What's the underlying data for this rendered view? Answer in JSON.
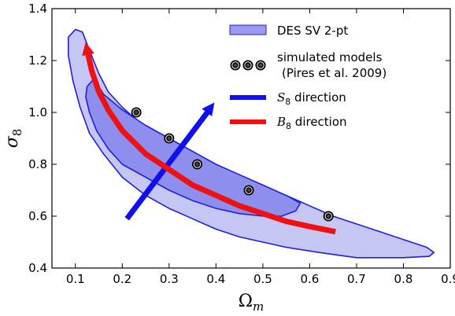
{
  "chart_data": {
    "type": "scatter",
    "xlabel": "Ω",
    "xlabel_sub": "m",
    "ylabel": "σ",
    "ylabel_sub": "8",
    "xlim": [
      0.05,
      0.9
    ],
    "ylim": [
      0.4,
      1.4
    ],
    "xticks": [
      "0.1",
      "0.2",
      "0.3",
      "0.4",
      "0.5",
      "0.6",
      "0.7",
      "0.8",
      "0.9"
    ],
    "yticks": [
      "0.4",
      "0.6",
      "0.8",
      "1.0",
      "1.2",
      "1.4"
    ],
    "grid": false,
    "legend_position": "top-right",
    "legend": [
      {
        "label": "DES SV 2-pt",
        "kind": "region"
      },
      {
        "label": "simulated models",
        "label2": "(Pires et al. 2009)",
        "kind": "markers"
      },
      {
        "label_var": "S",
        "label_sub": "8",
        "label_rest": " direction",
        "kind": "arrow-blue"
      },
      {
        "label_var": "B",
        "label_sub": "8",
        "label_rest": " direction",
        "kind": "arrow-red"
      }
    ],
    "simulated_models": {
      "x": [
        0.23,
        0.3,
        0.36,
        0.47,
        0.64
      ],
      "y": [
        1.0,
        0.9,
        0.8,
        0.7,
        0.6
      ]
    },
    "contour_outer": [
      [
        0.085,
        1.29
      ],
      [
        0.1,
        1.32
      ],
      [
        0.115,
        1.31
      ],
      [
        0.13,
        1.24
      ],
      [
        0.15,
        1.15
      ],
      [
        0.17,
        1.08
      ],
      [
        0.2,
        1.02
      ],
      [
        0.25,
        0.94
      ],
      [
        0.3,
        0.88
      ],
      [
        0.35,
        0.83
      ],
      [
        0.4,
        0.79
      ],
      [
        0.45,
        0.75
      ],
      [
        0.5,
        0.71
      ],
      [
        0.55,
        0.68
      ],
      [
        0.6,
        0.64
      ],
      [
        0.65,
        0.6
      ],
      [
        0.7,
        0.57
      ],
      [
        0.75,
        0.54
      ],
      [
        0.8,
        0.51
      ],
      [
        0.85,
        0.48
      ],
      [
        0.865,
        0.46
      ],
      [
        0.855,
        0.445
      ],
      [
        0.8,
        0.44
      ],
      [
        0.7,
        0.44
      ],
      [
        0.62,
        0.46
      ],
      [
        0.55,
        0.48
      ],
      [
        0.5,
        0.5
      ],
      [
        0.45,
        0.52
      ],
      [
        0.4,
        0.55
      ],
      [
        0.35,
        0.59
      ],
      [
        0.3,
        0.63
      ],
      [
        0.25,
        0.68
      ],
      [
        0.2,
        0.75
      ],
      [
        0.16,
        0.84
      ],
      [
        0.13,
        0.92
      ],
      [
        0.11,
        1.02
      ],
      [
        0.095,
        1.12
      ],
      [
        0.085,
        1.22
      ]
    ],
    "contour_inner": [
      [
        0.125,
        1.1
      ],
      [
        0.14,
        1.13
      ],
      [
        0.16,
        1.07
      ],
      [
        0.2,
        1.01
      ],
      [
        0.25,
        0.95
      ],
      [
        0.3,
        0.9
      ],
      [
        0.35,
        0.85
      ],
      [
        0.4,
        0.8
      ],
      [
        0.45,
        0.76
      ],
      [
        0.5,
        0.72
      ],
      [
        0.55,
        0.68
      ],
      [
        0.58,
        0.65
      ],
      [
        0.57,
        0.62
      ],
      [
        0.54,
        0.6
      ],
      [
        0.5,
        0.6
      ],
      [
        0.45,
        0.61
      ],
      [
        0.4,
        0.63
      ],
      [
        0.35,
        0.66
      ],
      [
        0.3,
        0.7
      ],
      [
        0.25,
        0.75
      ],
      [
        0.2,
        0.8
      ],
      [
        0.17,
        0.86
      ],
      [
        0.145,
        0.93
      ],
      [
        0.13,
        1.0
      ],
      [
        0.122,
        1.06
      ]
    ],
    "s8_arrow": {
      "x": [
        0.21,
        0.39
      ],
      "y": [
        0.59,
        1.02
      ]
    },
    "b8_curve": {
      "x": [
        0.655,
        0.6,
        0.55,
        0.5,
        0.45,
        0.4,
        0.35,
        0.3,
        0.25,
        0.2,
        0.17,
        0.15,
        0.135,
        0.125
      ],
      "y": [
        0.54,
        0.56,
        0.58,
        0.61,
        0.64,
        0.68,
        0.72,
        0.78,
        0.84,
        0.93,
        1.01,
        1.08,
        1.16,
        1.24
      ]
    },
    "colors": {
      "outer_fill": "#c6c6f4",
      "inner_fill": "#8e8eef",
      "contour_edge": "#1f1fe0",
      "s8_arrow": "#1010ee",
      "b8_arrow": "#f01010",
      "legend_patch": "#9a9af0"
    }
  }
}
